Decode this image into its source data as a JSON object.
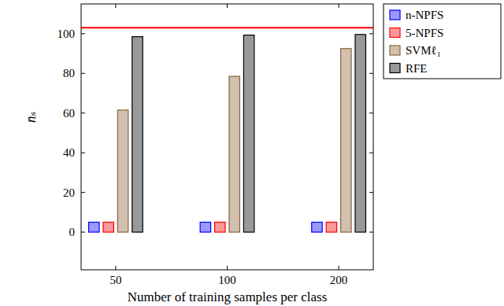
{
  "chart_data": {
    "type": "bar",
    "x_label": "Number of training samples per class",
    "y_label": "n̄ₛ",
    "categories": [
      "50",
      "100",
      "200"
    ],
    "series": [
      {
        "name": "n-NPFS",
        "color": "#0000ff",
        "values": [
          5,
          5,
          5
        ]
      },
      {
        "name": "5-NPFS",
        "color": "#ff0000",
        "values": [
          5,
          5,
          5
        ]
      },
      {
        "name": "SVMℓ₁",
        "color": "#8c6239",
        "values": [
          61.5,
          78.5,
          92.5
        ]
      },
      {
        "name": "RFE",
        "color": "#000000",
        "values": [
          98.5,
          99.3,
          99.6
        ]
      }
    ],
    "reference_lines": [
      {
        "value": 103,
        "color": "#ff0000"
      }
    ],
    "ylim": [
      -19,
      115
    ],
    "yticks": [
      0,
      20,
      40,
      60,
      80,
      100
    ],
    "grid": false,
    "legend": "outside-top-right"
  }
}
